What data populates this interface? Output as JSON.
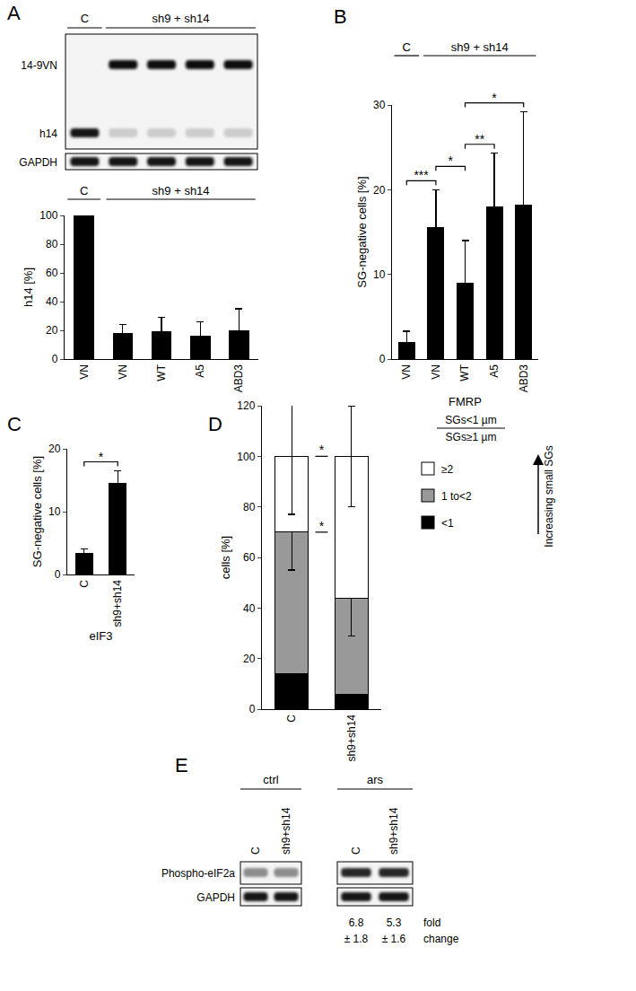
{
  "chart_data": [
    {
      "panel": "A",
      "type": "bar",
      "y_label": "h14 [%]",
      "categories": [
        "VN",
        "VN",
        "WT",
        "A5",
        "ABD3"
      ],
      "values": [
        100,
        18,
        19,
        16,
        20
      ],
      "errors": [
        0,
        6,
        10,
        10,
        15
      ],
      "color": "#000000",
      "ylim": [
        0,
        100
      ],
      "yticks": [
        0,
        20,
        40,
        60,
        80,
        100
      ],
      "grid": false,
      "groups": [
        {
          "label": "C",
          "from": 0,
          "to": 0
        },
        {
          "label": "sh9 + sh14",
          "from": 1,
          "to": 4
        }
      ]
    },
    {
      "panel": "B",
      "type": "bar",
      "y_label": "SG-negative cells [%]",
      "x_label": "FMRP",
      "categories": [
        "VN",
        "VN",
        "WT",
        "A5",
        "ABD3"
      ],
      "values": [
        2,
        15.5,
        9,
        18,
        18.2
      ],
      "errors": [
        1.3,
        4.5,
        5,
        6.3,
        11
      ],
      "color": "#000000",
      "ylim": [
        0,
        30
      ],
      "yticks": [
        0,
        10,
        20,
        30
      ],
      "grid": false,
      "groups": [
        {
          "label": "C",
          "from": 0,
          "to": 0
        },
        {
          "label": "sh9 + sh14",
          "from": 1,
          "to": 4
        }
      ],
      "significance": [
        {
          "from": 0,
          "to": 1,
          "text": "***"
        },
        {
          "from": 1,
          "to": 2,
          "text": "*"
        },
        {
          "from": 2,
          "to": 3,
          "text": "**"
        },
        {
          "from": 2,
          "to": 4,
          "text": "*"
        }
      ]
    },
    {
      "panel": "C",
      "type": "bar",
      "y_label": "SG-negative cells [%]",
      "x_label": "eIF3",
      "categories": [
        "C",
        "sh9+sh14"
      ],
      "values": [
        3.3,
        14.5
      ],
      "errors": [
        0.8,
        2
      ],
      "color": "#000000",
      "ylim": [
        0,
        20
      ],
      "yticks": [
        0,
        10,
        20
      ],
      "grid": false,
      "significance": [
        {
          "from": 0,
          "to": 1,
          "text": "*"
        }
      ]
    },
    {
      "panel": "D",
      "type": "bar",
      "stacked": true,
      "y_label": "cells [%]",
      "categories": [
        "C",
        "sh9+sh14"
      ],
      "series": [
        {
          "name": "<1",
          "color": "#000000",
          "values": [
            14,
            6
          ],
          "errors": [
            13,
            7
          ]
        },
        {
          "name": "1 to<2",
          "color": "#999999",
          "values": [
            56,
            38
          ],
          "errors": [
            15,
            15
          ]
        },
        {
          "name": "≥2",
          "color": "#ffffff",
          "values": [
            30,
            56
          ],
          "errors": [
            23,
            20
          ]
        }
      ],
      "ylim": [
        0,
        120
      ],
      "yticks": [
        0,
        20,
        40,
        60,
        80,
        100,
        120
      ],
      "grid": false,
      "legend": "right",
      "legend_title": [
        "SGs<1 µm",
        "SGs≥1 µm"
      ],
      "annotations": [
        "Increasing small SGs"
      ],
      "significance": [
        {
          "series": "≥2",
          "text": "*"
        },
        {
          "series": "1 to<2",
          "text": "*"
        }
      ]
    }
  ],
  "blots": [
    {
      "groups": [
        {
          "label": "C",
          "from": 0,
          "to": 0
        },
        {
          "label": "sh9 + sh14",
          "from": 1,
          "to": 4
        }
      ],
      "rows": [
        {
          "name": "14-9VN",
          "bands": [
            0,
            0.95,
            0.95,
            0.95,
            0.95
          ]
        },
        {
          "name": "h14",
          "bands": [
            0.9,
            0.2,
            0.2,
            0.2,
            0.2
          ]
        },
        {
          "name": "GAPDH",
          "bands": [
            0.9,
            0.9,
            0.9,
            0.9,
            0.9
          ]
        }
      ]
    },
    {
      "panel": "E",
      "groups": [
        {
          "label": "ctrl",
          "lanes": [
            "C",
            "sh9+sh14"
          ]
        },
        {
          "label": "ars",
          "lanes": [
            "C",
            "sh9+sh14"
          ],
          "fold": [
            [
              "6.8",
              "± 1.8"
            ],
            [
              "5.3",
              "± 1.6"
            ]
          ]
        }
      ],
      "rows": [
        {
          "name": "Phospho-eIF2a",
          "bands": [
            [
              0.45,
              0.45
            ],
            [
              0.85,
              0.85
            ]
          ]
        },
        {
          "name": "GAPDH",
          "bands": [
            [
              0.9,
              0.9
            ],
            [
              0.9,
              0.9
            ]
          ]
        }
      ],
      "fold_label": [
        "fold",
        "change"
      ]
    }
  ]
}
